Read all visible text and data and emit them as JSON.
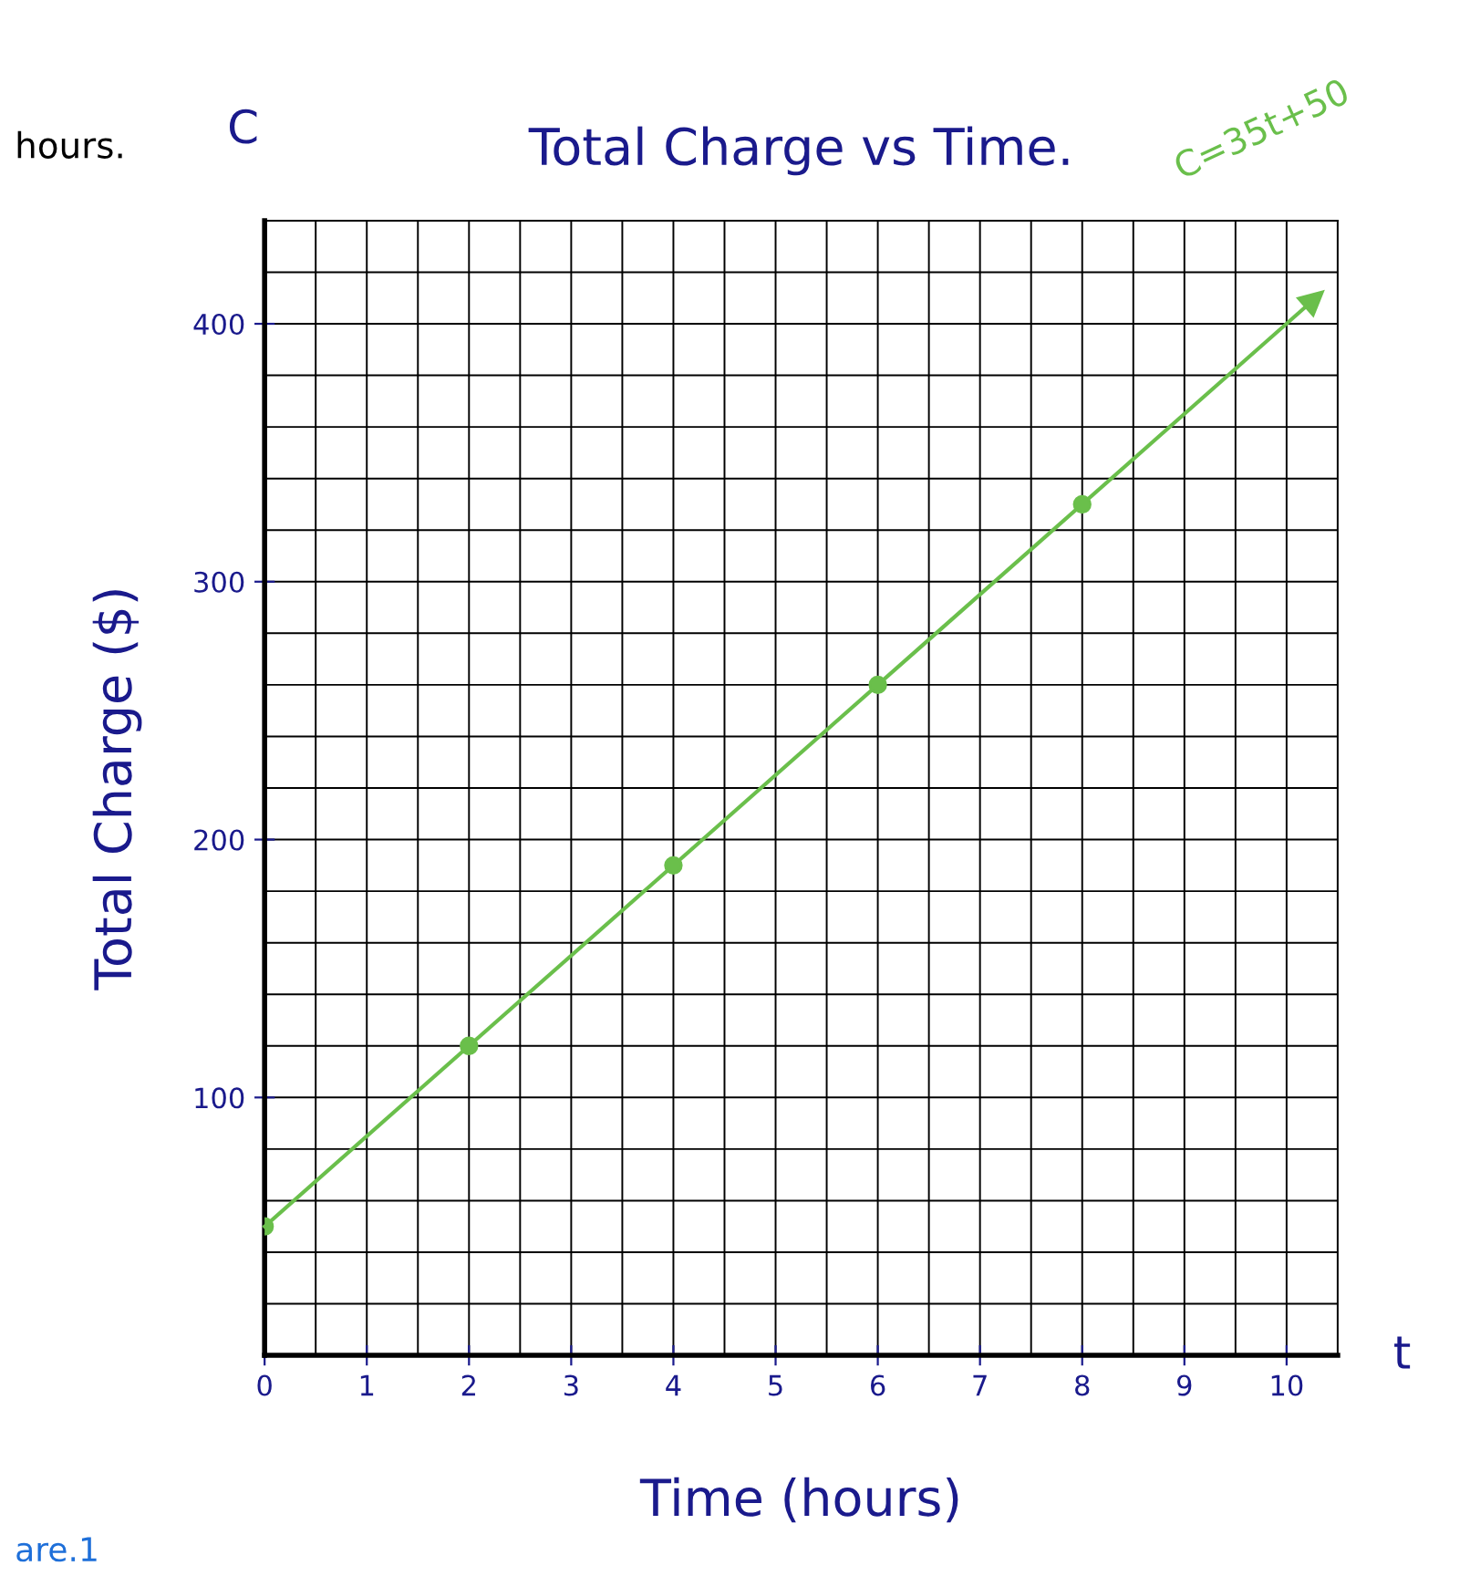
{
  "chart_data": {
    "type": "line",
    "title": "Total Charge vs Time.",
    "xlabel": "Time (hours)",
    "ylabel": "Total Charge ($)",
    "annotations": [
      "C=35t+50",
      "C",
      "t",
      "hours.",
      "are.1"
    ],
    "x": [
      0,
      2,
      4,
      6,
      8
    ],
    "series": [
      {
        "type": "scatter",
        "marker": "circle",
        "color": "#6abf4b",
        "values": [
          50,
          120,
          190,
          260,
          330
        ]
      },
      {
        "color": "#6abf4b",
        "x": [
          0,
          10.27
        ],
        "values": [
          50,
          409.5
        ]
      }
    ],
    "xlim": [
      0,
      10.5
    ],
    "ylim": [
      0,
      440
    ],
    "xticks": [
      0,
      1,
      2,
      3,
      4,
      5,
      6,
      7,
      8,
      9,
      10
    ],
    "yticks": [
      100,
      200,
      300,
      400
    ],
    "grid": true
  }
}
